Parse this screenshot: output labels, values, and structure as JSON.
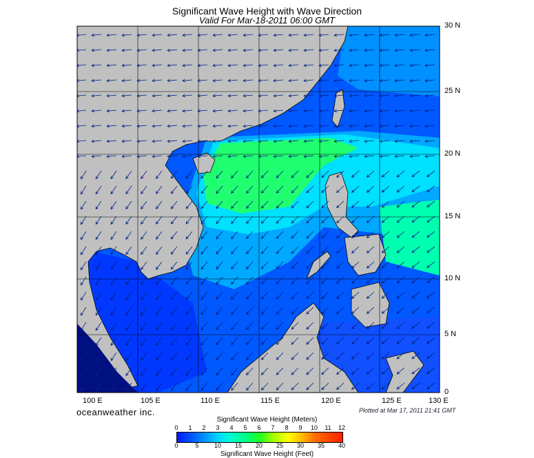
{
  "title": "Significant Wave Height with Wave Direction",
  "subtitle": "Valid For Mar-18-2011 06:00 GMT",
  "lat_labels": [
    "30 N",
    "25 N",
    "20 N",
    "15 N",
    "10 N",
    "5 N",
    "0"
  ],
  "lon_labels": [
    "100 E",
    "105 E",
    "110 E",
    "115 E",
    "120 E",
    "125 E",
    "130 E"
  ],
  "brand": "oceanweather inc.",
  "plotted": "Plotted at Mar 17, 2011 21:41 GMT",
  "colorbar": {
    "meters_title": "Significant Wave Height (Meters)",
    "feet_title": "Significant Wave Height (Feet)",
    "meters_ticks": [
      "0",
      "1",
      "2",
      "3",
      "4",
      "5",
      "6",
      "7",
      "8",
      "9",
      "10",
      "11",
      "12"
    ],
    "feet_ticks": [
      "0",
      "5",
      "10",
      "15",
      "20",
      "25",
      "30",
      "35",
      "40"
    ]
  },
  "colors": {
    "land": "#c0c0c0",
    "deep_blue": "#0020ff",
    "cyan": "#00e8ff",
    "green": "#20ff50"
  }
}
